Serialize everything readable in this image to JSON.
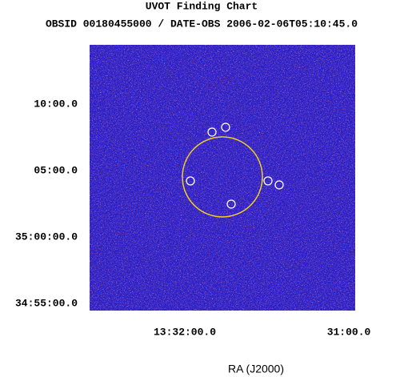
{
  "header": {
    "title": "UVOT Finding Chart",
    "subtitle": "OBSID 00180455000 / DATE-OBS 2006-02-06T05:10:45.0"
  },
  "y_ticks": [
    "10:00.0",
    "05:00.0",
    "35:00:00.0",
    "34:55:00.0"
  ],
  "x_ticks": [
    "13:32:00.0",
    "31:00.0"
  ],
  "x_label": "RA (J2000)"
}
